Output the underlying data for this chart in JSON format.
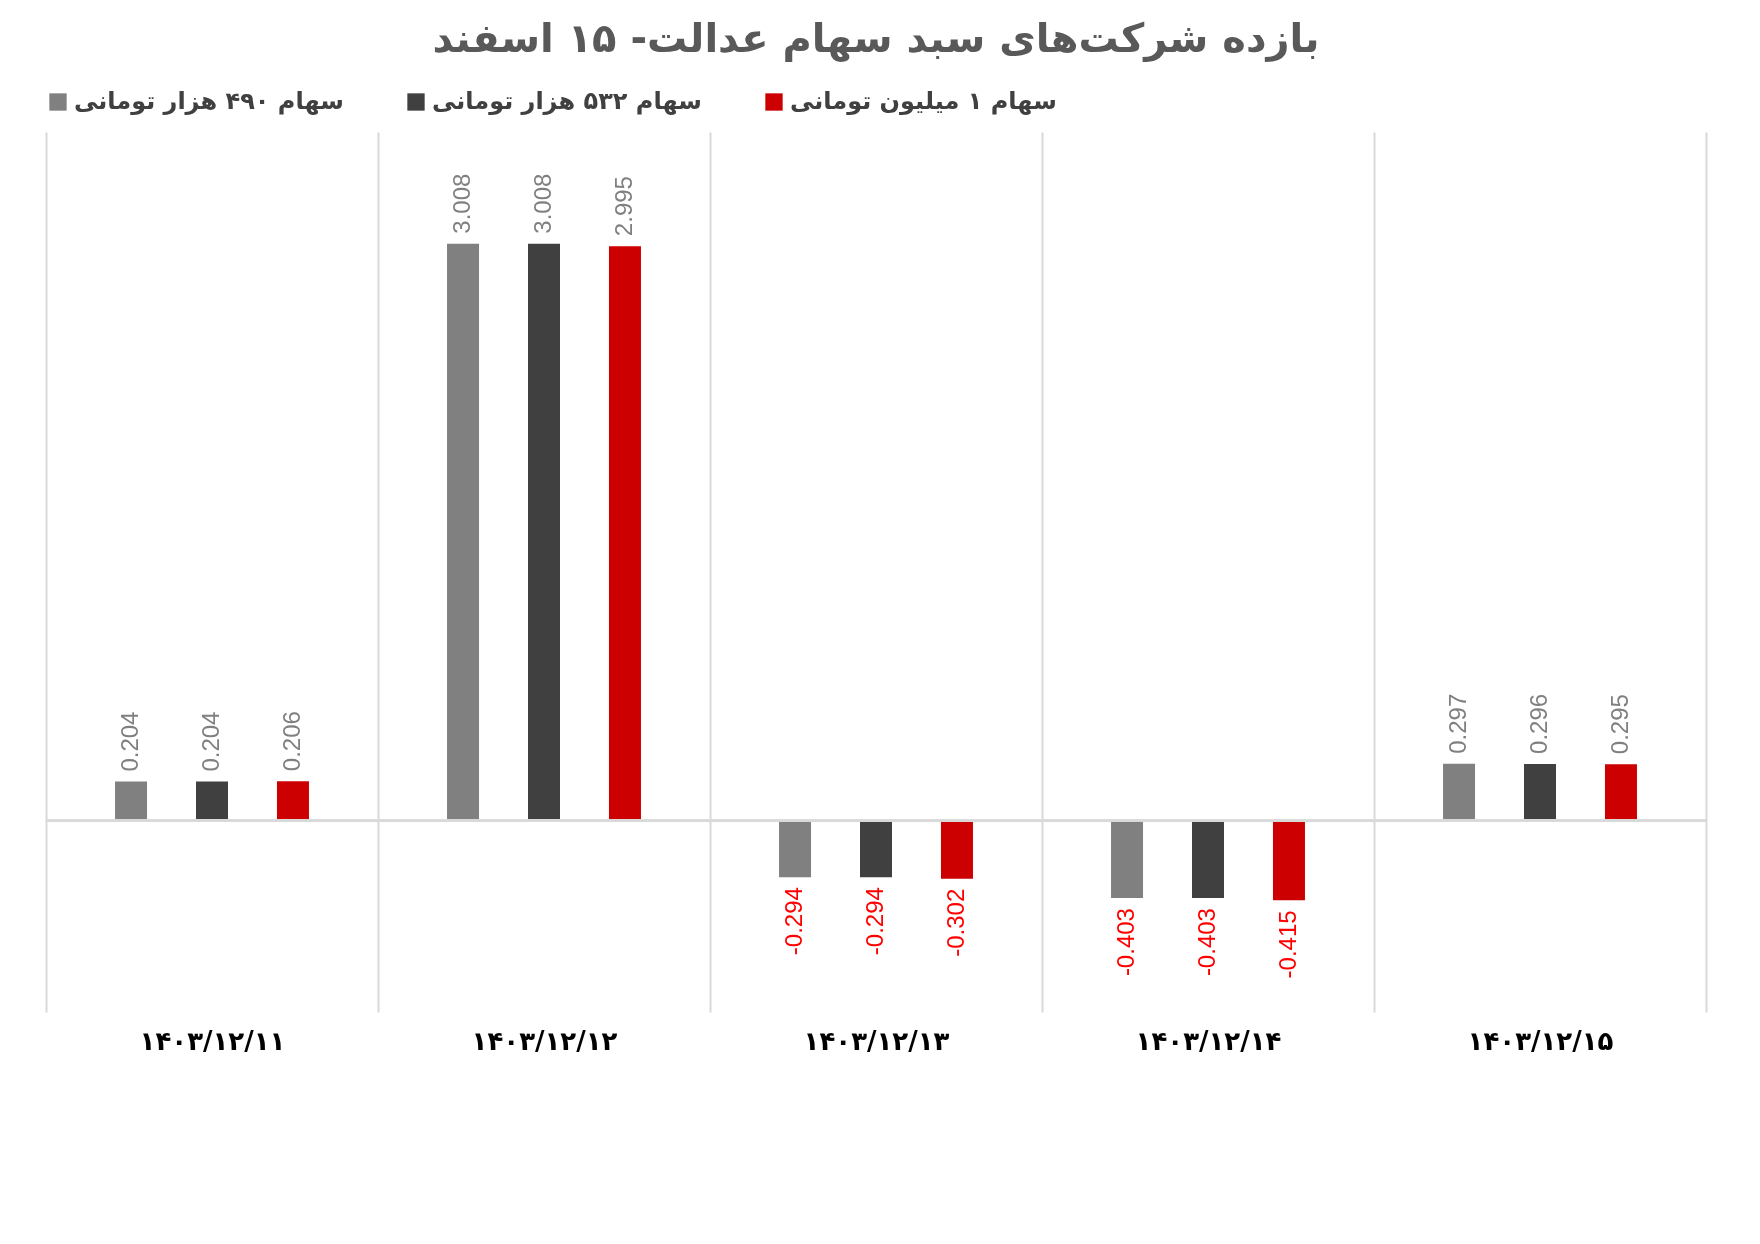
{
  "chart_data": {
    "type": "bar",
    "title": "بازده شرکت‌های سبد سهام عدالت- ۱۵ اسفند",
    "categories": [
      "۱۴۰۳/۱۲/۱۱",
      "۱۴۰۳/۱۲/۱۲",
      "۱۴۰۳/۱۲/۱۳",
      "۱۴۰۳/۱۲/۱۴",
      "۱۴۰۳/۱۲/۱۵"
    ],
    "series": [
      {
        "name": "سهام ۴۹۰ هزار تومانی",
        "color": "#808080",
        "values": [
          0.204,
          3.008,
          -0.294,
          -0.403,
          0.297
        ]
      },
      {
        "name": "سهام ۵۳۲ هزار تومانی",
        "color": "#404040",
        "values": [
          0.204,
          3.008,
          -0.294,
          -0.403,
          0.296
        ]
      },
      {
        "name": "سهام ۱ میلیون تومانی",
        "color": "#cc0000",
        "values": [
          0.206,
          2.995,
          -0.302,
          -0.415,
          0.295
        ]
      }
    ],
    "data_labels": true,
    "legend": "top",
    "grid": "x"
  }
}
